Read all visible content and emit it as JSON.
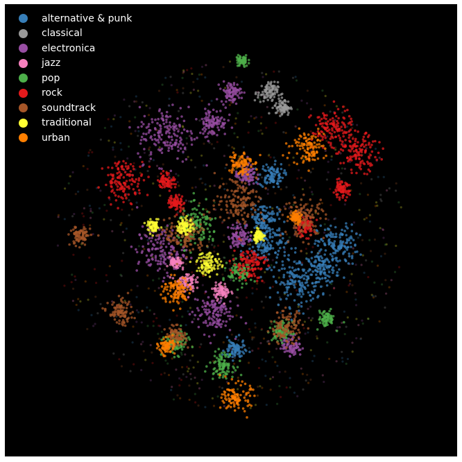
{
  "chart_data": {
    "type": "scatter",
    "title": "",
    "xlabel": "",
    "ylabel": "",
    "axes_visible": false,
    "grid": false,
    "background": "#000000",
    "legend_placement": "top-left",
    "xlim": [
      -1,
      1
    ],
    "ylim": [
      -1,
      1
    ],
    "series": [
      {
        "name": "alternative & punk",
        "color": "#377eb8",
        "clusters": [
          [
            0.22,
            0.33,
            0.06
          ],
          [
            0.58,
            -0.05,
            0.1
          ],
          [
            0.36,
            -0.25,
            0.12
          ],
          [
            0.5,
            -0.18,
            0.08
          ],
          [
            0.2,
            -0.05,
            0.1
          ],
          [
            0.02,
            -0.62,
            0.05
          ],
          [
            0.18,
            0.1,
            0.07
          ]
        ]
      },
      {
        "name": "classical",
        "color": "#999999",
        "clusters": [
          [
            0.2,
            0.78,
            0.05
          ],
          [
            0.28,
            0.7,
            0.04
          ]
        ]
      },
      {
        "name": "electronica",
        "color": "#984ea3",
        "clusters": [
          [
            -0.35,
            0.55,
            0.14
          ],
          [
            -0.1,
            0.62,
            0.07
          ],
          [
            0.0,
            0.78,
            0.05
          ],
          [
            -0.38,
            -0.08,
            0.12
          ],
          [
            -0.1,
            -0.42,
            0.1
          ],
          [
            0.08,
            0.33,
            0.05
          ],
          [
            0.33,
            -0.6,
            0.05
          ],
          [
            0.05,
            0.0,
            0.06
          ]
        ]
      },
      {
        "name": "jazz",
        "color": "#f781bf",
        "clusters": [
          [
            -0.25,
            -0.25,
            0.05
          ],
          [
            -0.05,
            -0.3,
            0.04
          ],
          [
            -0.3,
            -0.15,
            0.03
          ]
        ]
      },
      {
        "name": "pop",
        "color": "#4daf4a",
        "clusters": [
          [
            -0.18,
            0.05,
            0.1
          ],
          [
            0.06,
            0.95,
            0.03
          ],
          [
            -0.05,
            -0.7,
            0.06
          ],
          [
            0.28,
            -0.52,
            0.05
          ],
          [
            -0.3,
            -0.58,
            0.06
          ],
          [
            0.52,
            -0.45,
            0.04
          ],
          [
            0.05,
            -0.2,
            0.06
          ]
        ]
      },
      {
        "name": "rock",
        "color": "#e41a1c",
        "clusters": [
          [
            0.55,
            0.58,
            0.1
          ],
          [
            0.7,
            0.45,
            0.09
          ],
          [
            -0.58,
            0.3,
            0.1
          ],
          [
            -0.35,
            0.3,
            0.04
          ],
          [
            -0.3,
            0.18,
            0.04
          ],
          [
            0.1,
            -0.15,
            0.08
          ],
          [
            0.4,
            0.05,
            0.05
          ],
          [
            0.6,
            0.25,
            0.04
          ]
        ]
      },
      {
        "name": "soundtrack",
        "color": "#a65628",
        "clusters": [
          [
            0.4,
            0.1,
            0.1
          ],
          [
            0.05,
            0.2,
            0.12
          ],
          [
            -0.25,
            0.0,
            0.1
          ],
          [
            0.3,
            -0.5,
            0.08
          ],
          [
            -0.6,
            -0.42,
            0.06
          ],
          [
            -0.82,
            0.0,
            0.05
          ],
          [
            -0.3,
            -0.55,
            0.05
          ]
        ]
      },
      {
        "name": "traditional",
        "color": "#ffff33",
        "clusters": [
          [
            -0.12,
            -0.15,
            0.06
          ],
          [
            -0.25,
            0.05,
            0.04
          ],
          [
            -0.42,
            0.05,
            0.03
          ],
          [
            0.15,
            0.0,
            0.03
          ]
        ]
      },
      {
        "name": "urban",
        "color": "#ff7f00",
        "clusters": [
          [
            0.42,
            0.48,
            0.08
          ],
          [
            0.05,
            0.4,
            0.06
          ],
          [
            -0.3,
            -0.3,
            0.07
          ],
          [
            0.03,
            -0.88,
            0.07
          ],
          [
            -0.35,
            -0.6,
            0.04
          ],
          [
            0.35,
            0.1,
            0.03
          ]
        ]
      }
    ]
  }
}
